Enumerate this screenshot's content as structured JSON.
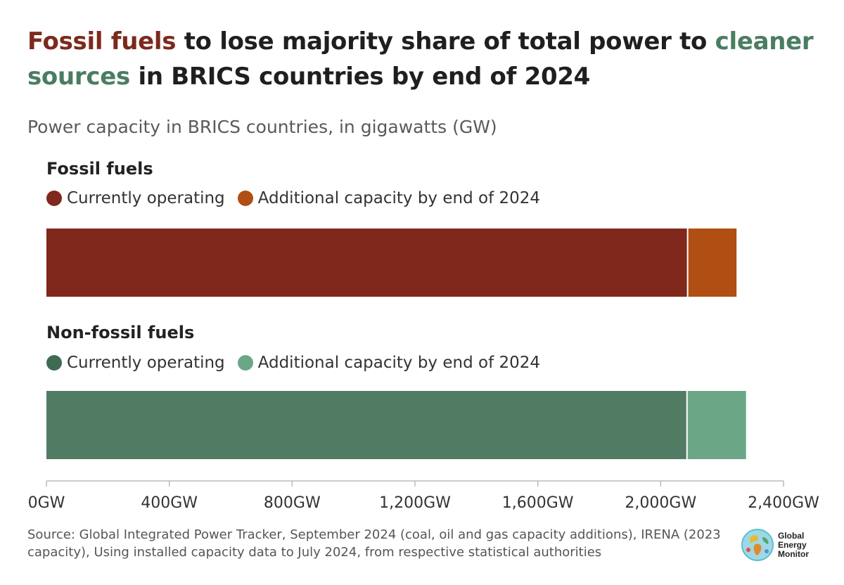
{
  "title": {
    "part1": "Fossil fuels",
    "part2": " to lose majority share of total power to ",
    "part3": "cleaner sources",
    "part4": " in BRICS countries by end of 2024"
  },
  "subtitle": "Power capacity in BRICS countries, in gigawatts (GW)",
  "source": "Source: Global Integrated Power Tracker, September 2024 (coal, oil and gas capacity additions), IRENA (2023 capacity), Using installed capacity data to July 2024, from respective statistical authorities",
  "logo": {
    "line1": "Global",
    "line2": "Energy",
    "line3": "Monitor",
    "icon": "globe-icon"
  },
  "chart_data": {
    "type": "bar",
    "orientation": "horizontal",
    "stacked": true,
    "xlim": [
      0,
      2400
    ],
    "ticks": [
      0,
      400,
      800,
      1200,
      1600,
      2000,
      2400
    ],
    "tick_labels": [
      "0GW",
      "400GW",
      "800GW",
      "1,200GW",
      "1,600GW",
      "2,000GW",
      "2,400GW"
    ],
    "groups": [
      {
        "label": "Fossil fuels",
        "segments": [
          {
            "name": "Currently operating",
            "value": 2090,
            "color": "#80281b"
          },
          {
            "name": "Additional capacity by end of 2024",
            "value": 157,
            "color": "#b04e13"
          }
        ]
      },
      {
        "label": "Non-fossil fuels",
        "segments": [
          {
            "name": "Currently operating",
            "value": 2088,
            "color": "#517b63"
          },
          {
            "name": "Additional capacity by end of 2024",
            "value": 190,
            "color": "#6ba787"
          }
        ]
      }
    ]
  }
}
